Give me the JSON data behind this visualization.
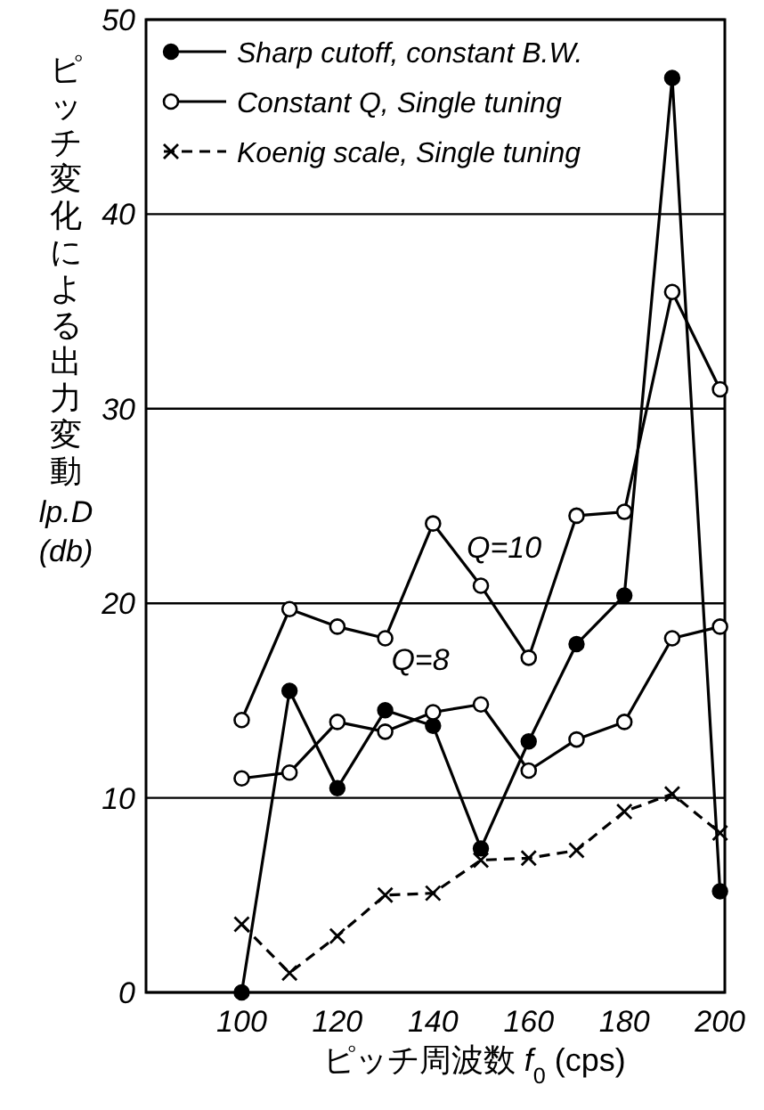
{
  "chart_data": {
    "type": "line",
    "xlabel": "ピッチ周波数 *f*$_{0}$ (cps)",
    "ylabel": "ピッチ変化による出力変動 lp.D (db)",
    "x": [
      100,
      110,
      120,
      130,
      140,
      150,
      160,
      170,
      180,
      190,
      200
    ],
    "xlim": [
      80,
      201
    ],
    "ylim": [
      0,
      50
    ],
    "xticks": [
      100,
      120,
      140,
      160,
      180,
      200
    ],
    "yticks": [
      0,
      10,
      20,
      30,
      40,
      50
    ],
    "grid": "y",
    "legend": "top",
    "line_style": "solid",
    "series": [
      {
        "name": "Sharp cutoff, constant B.W.",
        "color": "#000000",
        "marker": "circle",
        "values": [
          0,
          15.5,
          10.5,
          14.5,
          13.7,
          7.4,
          12.9,
          17.9,
          20.4,
          47,
          5.2
        ]
      },
      {
        "name": "Constant Q, Single tuning",
        "color": "#000000",
        "marker": "circle_open",
        "values": [
          14.0,
          19.7,
          18.8,
          18.2,
          24.1,
          20.9,
          17.2,
          24.5,
          24.7,
          36,
          31
        ]
      },
      {
        "color": "#000000",
        "marker": "circle_open",
        "values": [
          11.0,
          11.3,
          13.9,
          13.4,
          14.4,
          14.8,
          11.4,
          13.0,
          13.9,
          18.2,
          18.8
        ]
      },
      {
        "name": "Koenig scale, Single tuning",
        "color": "#000000",
        "marker": "cross",
        "line_style": "dashed",
        "values": [
          3.5,
          1.0,
          2.9,
          5.0,
          5.1,
          6.8,
          6.9,
          7.3,
          9.3,
          10.2,
          8.2
        ]
      }
    ],
    "annotations": [
      "Q=10",
      "Q=8"
    ]
  }
}
